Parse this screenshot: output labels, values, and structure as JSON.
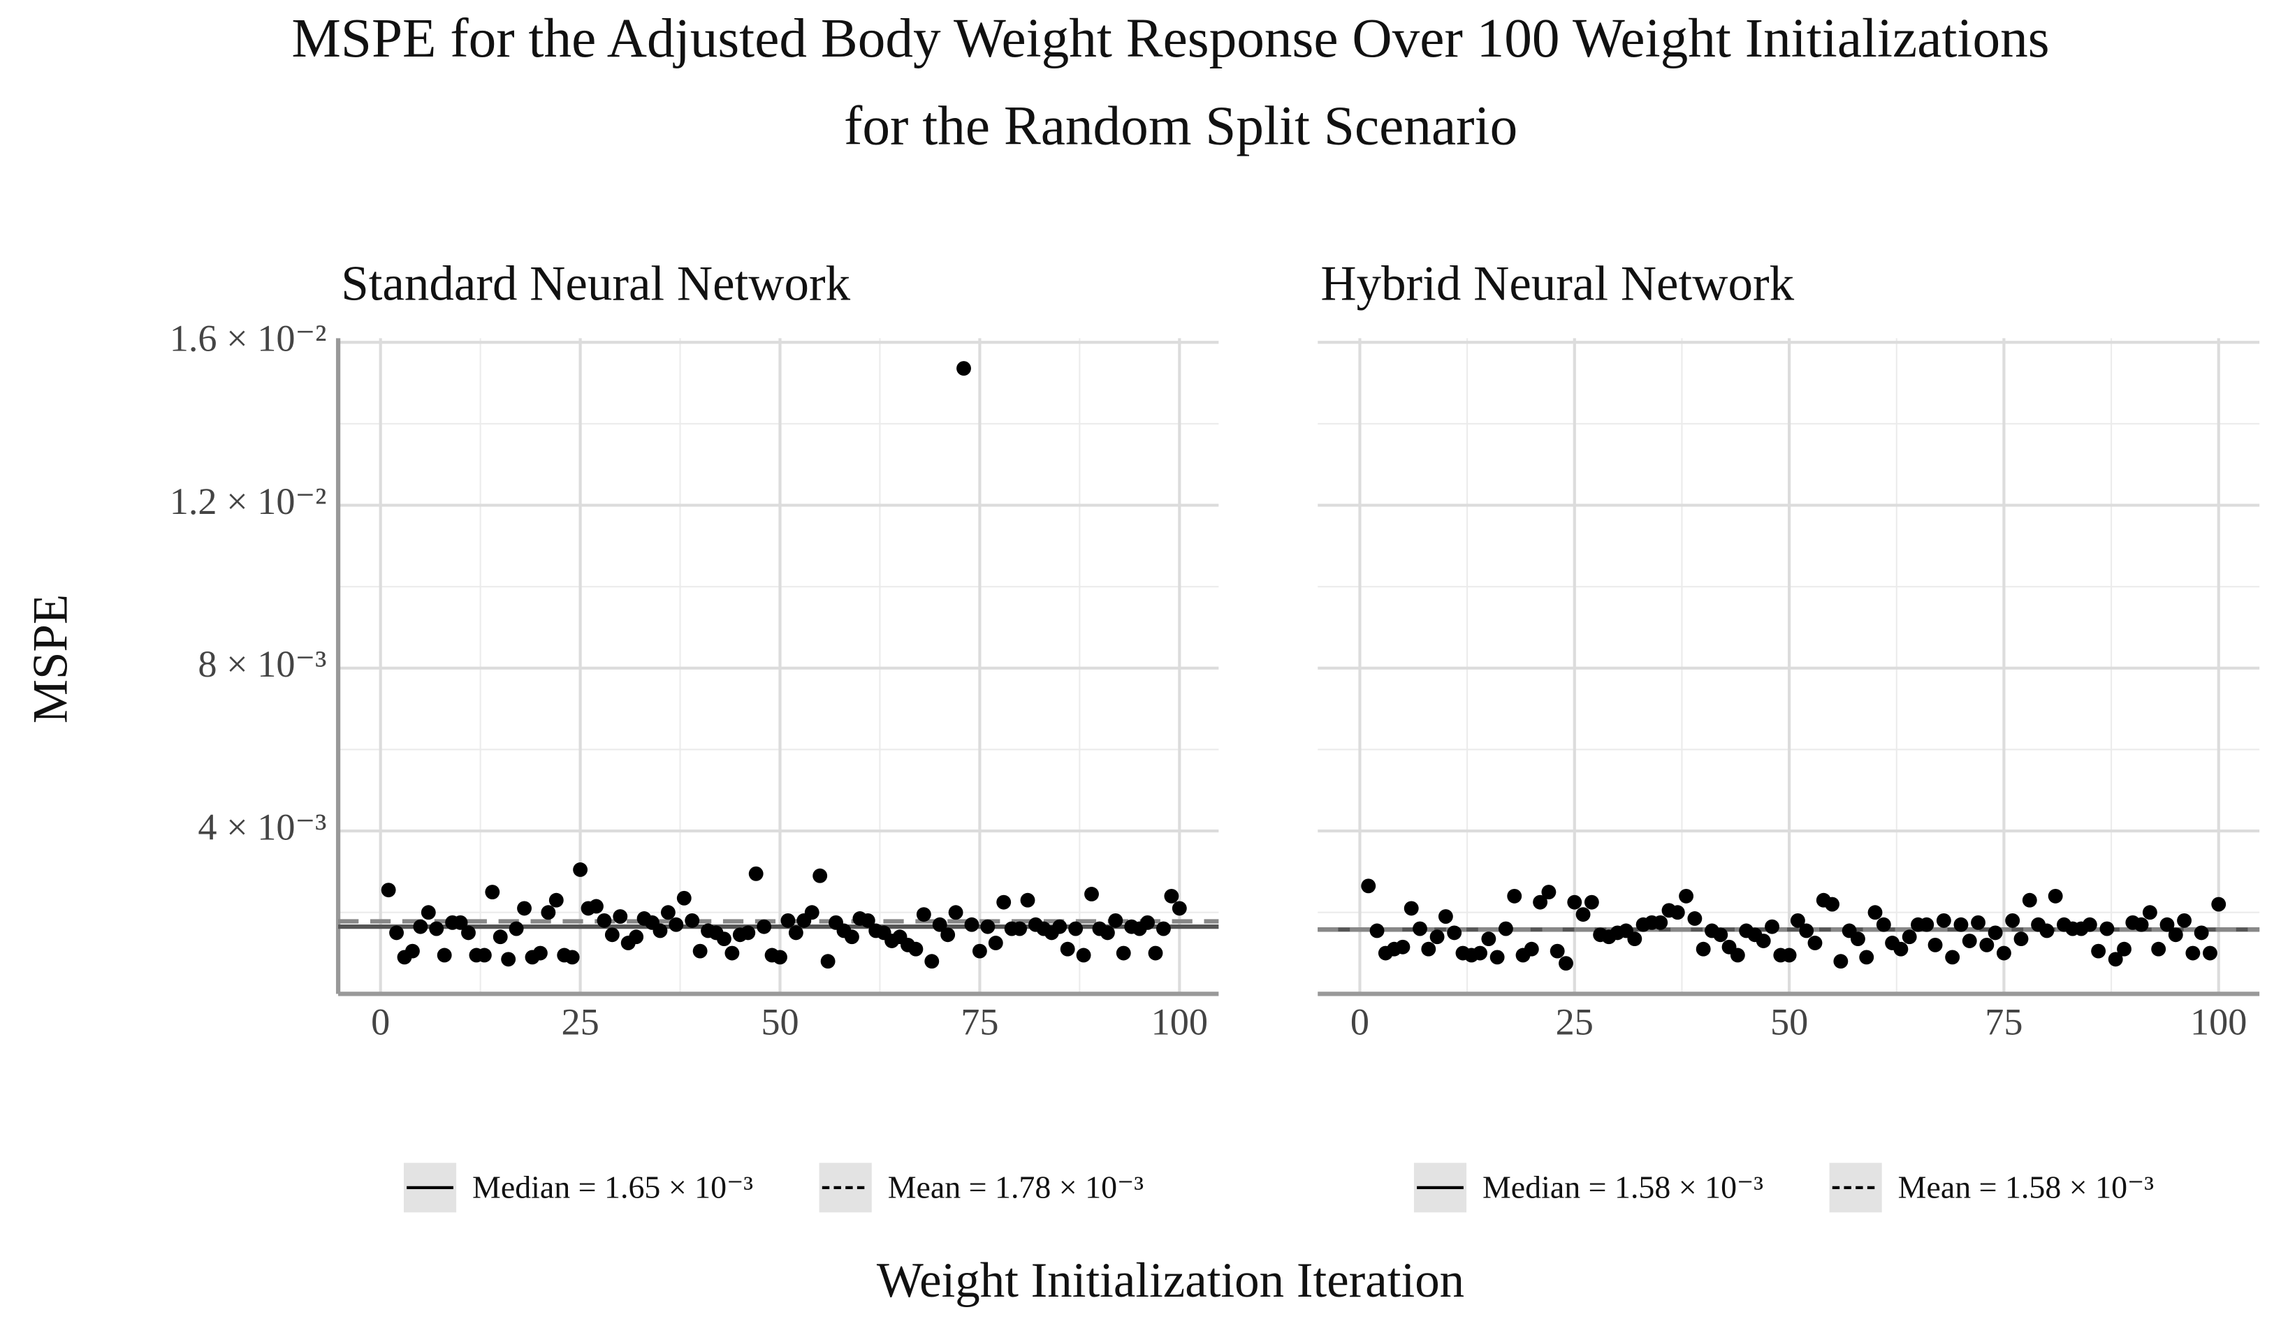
{
  "title": [
    "MSPE for the Adjusted Body Weight Response Over 100 Weight Initializations",
    "for the Random Split Scenario"
  ],
  "x_label": "Weight Initialization Iteration",
  "y_label": "MSPE",
  "chart_data": [
    {
      "type": "scatter",
      "title": "Standard Neural Network",
      "color": "#000000",
      "x": [
        1,
        2,
        3,
        4,
        5,
        6,
        7,
        8,
        9,
        10,
        11,
        12,
        13,
        14,
        15,
        16,
        17,
        18,
        19,
        20,
        21,
        22,
        23,
        24,
        25,
        26,
        27,
        28,
        29,
        30,
        31,
        32,
        33,
        34,
        35,
        36,
        37,
        38,
        39,
        40,
        41,
        42,
        43,
        44,
        45,
        46,
        47,
        48,
        49,
        50,
        51,
        52,
        53,
        54,
        55,
        56,
        57,
        58,
        59,
        60,
        61,
        62,
        63,
        64,
        65,
        66,
        67,
        68,
        69,
        70,
        71,
        72,
        73,
        74,
        75,
        76,
        77,
        78,
        79,
        80,
        81,
        82,
        83,
        84,
        85,
        86,
        87,
        88,
        89,
        90,
        91,
        92,
        93,
        94,
        95,
        96,
        97,
        98,
        99,
        100
      ],
      "values": [
        0.00255,
        0.0015,
        0.0009,
        0.00105,
        0.00165,
        0.002,
        0.0016,
        0.00095,
        0.00175,
        0.00175,
        0.0015,
        0.00095,
        0.00095,
        0.0025,
        0.0014,
        0.00085,
        0.0016,
        0.0021,
        0.0009,
        0.001,
        0.002,
        0.0023,
        0.00095,
        0.0009,
        0.00305,
        0.0021,
        0.00215,
        0.0018,
        0.00145,
        0.0019,
        0.00125,
        0.0014,
        0.00185,
        0.00175,
        0.00155,
        0.002,
        0.0017,
        0.00235,
        0.0018,
        0.00105,
        0.00155,
        0.0015,
        0.00135,
        0.001,
        0.00145,
        0.0015,
        0.00295,
        0.00165,
        0.00095,
        0.0009,
        0.0018,
        0.0015,
        0.0018,
        0.002,
        0.0029,
        0.0008,
        0.00175,
        0.00155,
        0.0014,
        0.00185,
        0.0018,
        0.00155,
        0.0015,
        0.0013,
        0.0014,
        0.0012,
        0.0011,
        0.00195,
        0.0008,
        0.0017,
        0.00145,
        0.002,
        0.01536,
        0.0017,
        0.00105,
        0.00165,
        0.00125,
        0.00225,
        0.0016,
        0.0016,
        0.0023,
        0.0017,
        0.0016,
        0.0015,
        0.00165,
        0.0011,
        0.0016,
        0.00095,
        0.00245,
        0.0016,
        0.0015,
        0.0018,
        0.001,
        0.00165,
        0.0016,
        0.00175,
        0.001,
        0.0016,
        0.0024,
        0.0021
      ],
      "xlim": [
        -5.3,
        104.9
      ],
      "xticks": [
        0,
        25,
        50,
        75,
        100
      ],
      "xminor": [
        12.5,
        37.5,
        62.5,
        87.5
      ],
      "ylim": [
        0,
        0.0161
      ],
      "yticks": [
        {
          "value": 0.004,
          "label": "4 × 10⁻³"
        },
        {
          "value": 0.008,
          "label": "8 × 10⁻³"
        },
        {
          "value": 0.012,
          "label": "1.2 × 10⁻²"
        },
        {
          "value": 0.016,
          "label": "1.6 × 10⁻²"
        }
      ],
      "yminor": [
        0.002,
        0.006,
        0.01,
        0.014
      ],
      "lines": [
        {
          "name": "Median",
          "value": 0.00165,
          "label": "Median = 1.65 × 10⁻³",
          "style": "solid",
          "color": "#555555"
        },
        {
          "name": "Mean",
          "value": 0.00178,
          "label": "Mean = 1.78 × 10⁻³",
          "style": "dashed",
          "color": "#888888"
        }
      ]
    },
    {
      "type": "scatter",
      "title": "Hybrid Neural Network",
      "color": "#000000",
      "x": [
        1,
        2,
        3,
        4,
        5,
        6,
        7,
        8,
        9,
        10,
        11,
        12,
        13,
        14,
        15,
        16,
        17,
        18,
        19,
        20,
        21,
        22,
        23,
        24,
        25,
        26,
        27,
        28,
        29,
        30,
        31,
        32,
        33,
        34,
        35,
        36,
        37,
        38,
        39,
        40,
        41,
        42,
        43,
        44,
        45,
        46,
        47,
        48,
        49,
        50,
        51,
        52,
        53,
        54,
        55,
        56,
        57,
        58,
        59,
        60,
        61,
        62,
        63,
        64,
        65,
        66,
        67,
        68,
        69,
        70,
        71,
        72,
        73,
        74,
        75,
        76,
        77,
        78,
        79,
        80,
        81,
        82,
        83,
        84,
        85,
        86,
        87,
        88,
        89,
        90,
        91,
        92,
        93,
        94,
        95,
        96,
        97,
        98,
        99,
        100
      ],
      "values": [
        0.00265,
        0.00155,
        0.001,
        0.0011,
        0.00115,
        0.0021,
        0.0016,
        0.0011,
        0.0014,
        0.0019,
        0.0015,
        0.001,
        0.00095,
        0.001,
        0.00135,
        0.0009,
        0.0016,
        0.0024,
        0.00095,
        0.0011,
        0.00225,
        0.0025,
        0.00105,
        0.00075,
        0.00225,
        0.00195,
        0.00225,
        0.00145,
        0.0014,
        0.0015,
        0.00155,
        0.00135,
        0.0017,
        0.00175,
        0.00175,
        0.00205,
        0.002,
        0.0024,
        0.00185,
        0.0011,
        0.00155,
        0.00145,
        0.00115,
        0.00095,
        0.00155,
        0.00145,
        0.0013,
        0.00165,
        0.00095,
        0.00095,
        0.0018,
        0.00155,
        0.00125,
        0.0023,
        0.0022,
        0.0008,
        0.00155,
        0.00135,
        0.0009,
        0.002,
        0.0017,
        0.00125,
        0.0011,
        0.0014,
        0.0017,
        0.0017,
        0.0012,
        0.0018,
        0.0009,
        0.0017,
        0.0013,
        0.00175,
        0.0012,
        0.0015,
        0.001,
        0.0018,
        0.00135,
        0.0023,
        0.0017,
        0.00155,
        0.0024,
        0.0017,
        0.0016,
        0.0016,
        0.0017,
        0.00105,
        0.0016,
        0.00085,
        0.0011,
        0.00175,
        0.0017,
        0.002,
        0.0011,
        0.0017,
        0.00145,
        0.0018,
        0.001,
        0.0015,
        0.001,
        0.0022
      ],
      "xlim": [
        -4.9,
        104.75
      ],
      "xticks": [
        0,
        25,
        50,
        75,
        100
      ],
      "xminor": [
        12.5,
        37.5,
        62.5,
        87.5
      ],
      "ylim": [
        0,
        0.0161
      ],
      "yticks": [
        0.004,
        0.008,
        0.012,
        0.016
      ],
      "yminor": [
        0.002,
        0.006,
        0.01,
        0.014
      ],
      "lines": [
        {
          "name": "Median",
          "value": 0.00158,
          "label": "Median = 1.58 × 10⁻³",
          "style": "solid",
          "color": "#555555"
        },
        {
          "name": "Mean",
          "value": 0.00158,
          "label": "Mean = 1.58 × 10⁻³",
          "style": "dashed",
          "color": "#888888"
        }
      ]
    }
  ]
}
